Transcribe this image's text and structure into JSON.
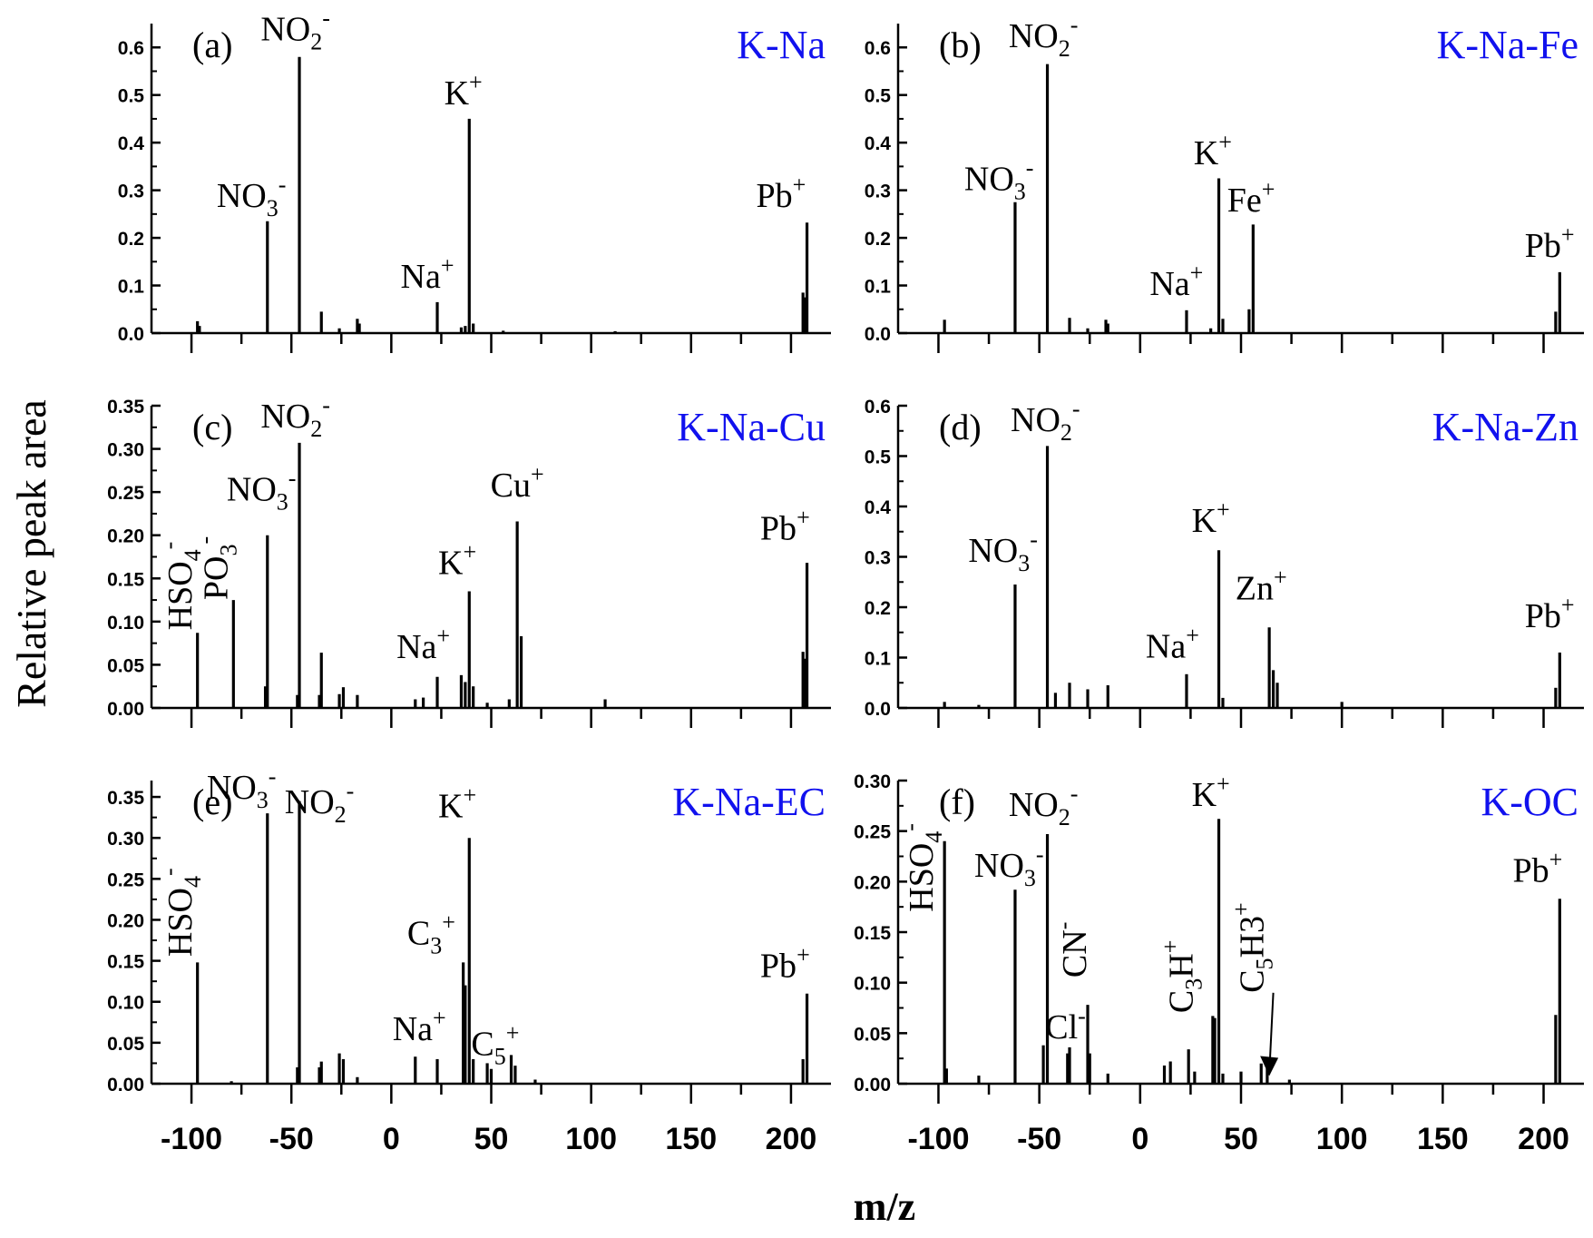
{
  "figure": {
    "ylabel": "Relative peak area",
    "xlabel": "m/z",
    "x_ticks": [
      "-100",
      "-50",
      "0",
      "50",
      "100",
      "150",
      "200"
    ],
    "text_color": "#000000",
    "title_color": "#1111ee"
  },
  "chart_data": [
    {
      "type": "bar",
      "panel": "(a)",
      "title": "K-Na",
      "xlim": [
        -120,
        220
      ],
      "ylim": [
        0,
        0.65
      ],
      "yticks": [
        0.0,
        0.1,
        0.2,
        0.3,
        0.4,
        0.5,
        0.6
      ],
      "ytick_labels": [
        "0.0",
        "0.1",
        "0.2",
        "0.3",
        "0.4",
        "0.5",
        "0.6"
      ],
      "peaks": [
        {
          "x": -97,
          "y": 0.025
        },
        {
          "x": -96,
          "y": 0.015
        },
        {
          "x": -62,
          "y": 0.235
        },
        {
          "x": -46,
          "y": 0.58
        },
        {
          "x": -35,
          "y": 0.045
        },
        {
          "x": -26,
          "y": 0.01
        },
        {
          "x": -17,
          "y": 0.03
        },
        {
          "x": -16,
          "y": 0.02
        },
        {
          "x": 23,
          "y": 0.065
        },
        {
          "x": 35,
          "y": 0.012
        },
        {
          "x": 37,
          "y": 0.015
        },
        {
          "x": 39,
          "y": 0.45
        },
        {
          "x": 41,
          "y": 0.02
        },
        {
          "x": 56,
          "y": 0.005
        },
        {
          "x": 112,
          "y": 0.004
        },
        {
          "x": 206,
          "y": 0.085
        },
        {
          "x": 207,
          "y": 0.075
        },
        {
          "x": 208,
          "y": 0.232
        }
      ],
      "annotations": [
        {
          "base": "NO",
          "sub": "3",
          "sup": "-"
        },
        {
          "base": "NO",
          "sub": "2",
          "sup": "-"
        },
        {
          "base": "K",
          "sub": "",
          "sup": "+"
        },
        {
          "base": "Na",
          "sub": "",
          "sup": "+"
        },
        {
          "base": "Pb",
          "sub": "",
          "sup": "+"
        }
      ]
    },
    {
      "type": "bar",
      "panel": "(b)",
      "title": "K-Na-Fe",
      "xlim": [
        -120,
        220
      ],
      "ylim": [
        0,
        0.65
      ],
      "yticks": [
        0.0,
        0.1,
        0.2,
        0.3,
        0.4,
        0.5,
        0.6
      ],
      "ytick_labels": [
        "0.0",
        "0.1",
        "0.2",
        "0.3",
        "0.4",
        "0.5",
        "0.6"
      ],
      "peaks": [
        {
          "x": -97,
          "y": 0.028
        },
        {
          "x": -62,
          "y": 0.275
        },
        {
          "x": -46,
          "y": 0.565
        },
        {
          "x": -35,
          "y": 0.032
        },
        {
          "x": -26,
          "y": 0.01
        },
        {
          "x": -17,
          "y": 0.028
        },
        {
          "x": -16,
          "y": 0.02
        },
        {
          "x": 23,
          "y": 0.048
        },
        {
          "x": 35,
          "y": 0.01
        },
        {
          "x": 39,
          "y": 0.325
        },
        {
          "x": 41,
          "y": 0.03
        },
        {
          "x": 54,
          "y": 0.05
        },
        {
          "x": 56,
          "y": 0.228
        },
        {
          "x": 206,
          "y": 0.045
        },
        {
          "x": 208,
          "y": 0.128
        }
      ],
      "annotations": [
        {
          "base": "NO",
          "sub": "3",
          "sup": "-"
        },
        {
          "base": "NO",
          "sub": "2",
          "sup": "-"
        },
        {
          "base": "K",
          "sub": "",
          "sup": "+"
        },
        {
          "base": "Fe",
          "sub": "",
          "sup": "+"
        },
        {
          "base": "Na",
          "sub": "",
          "sup": "+"
        },
        {
          "base": "Pb",
          "sub": "",
          "sup": "+"
        }
      ]
    },
    {
      "type": "bar",
      "panel": "(c)",
      "title": "K-Na-Cu",
      "xlim": [
        -120,
        220
      ],
      "ylim": [
        0,
        0.35
      ],
      "yticks": [
        0.0,
        0.05,
        0.1,
        0.15,
        0.2,
        0.25,
        0.3,
        0.35
      ],
      "ytick_labels": [
        "0.00",
        "0.05",
        "0.10",
        "0.15",
        "0.20",
        "0.25",
        "0.30",
        "0.35"
      ],
      "peaks": [
        {
          "x": -97,
          "y": 0.087
        },
        {
          "x": -79,
          "y": 0.125
        },
        {
          "x": -63,
          "y": 0.025
        },
        {
          "x": -62,
          "y": 0.2
        },
        {
          "x": -47,
          "y": 0.015
        },
        {
          "x": -46,
          "y": 0.307
        },
        {
          "x": -36,
          "y": 0.015
        },
        {
          "x": -35,
          "y": 0.064
        },
        {
          "x": -26,
          "y": 0.016
        },
        {
          "x": -24,
          "y": 0.024
        },
        {
          "x": -17,
          "y": 0.015
        },
        {
          "x": 12,
          "y": 0.01
        },
        {
          "x": 16,
          "y": 0.012
        },
        {
          "x": 23,
          "y": 0.036
        },
        {
          "x": 35,
          "y": 0.038
        },
        {
          "x": 37,
          "y": 0.03
        },
        {
          "x": 39,
          "y": 0.135
        },
        {
          "x": 41,
          "y": 0.025
        },
        {
          "x": 48,
          "y": 0.006
        },
        {
          "x": 59,
          "y": 0.01
        },
        {
          "x": 63,
          "y": 0.216
        },
        {
          "x": 65,
          "y": 0.083
        },
        {
          "x": 107,
          "y": 0.01
        },
        {
          "x": 206,
          "y": 0.065
        },
        {
          "x": 207,
          "y": 0.057
        },
        {
          "x": 208,
          "y": 0.168
        }
      ],
      "annotations": [
        {
          "base": "HSO",
          "sub": "4",
          "sup": "-"
        },
        {
          "base": "PO",
          "sub": "3",
          "sup": "-"
        },
        {
          "base": "NO",
          "sub": "3",
          "sup": "-"
        },
        {
          "base": "NO",
          "sub": "2",
          "sup": "-"
        },
        {
          "base": "Na",
          "sub": "",
          "sup": "+"
        },
        {
          "base": "K",
          "sub": "",
          "sup": "+"
        },
        {
          "base": "Cu",
          "sub": "",
          "sup": "+"
        },
        {
          "base": "Pb",
          "sub": "",
          "sup": "+"
        }
      ]
    },
    {
      "type": "bar",
      "panel": "(d)",
      "title": "K-Na-Zn",
      "xlim": [
        -120,
        220
      ],
      "ylim": [
        0,
        0.6
      ],
      "yticks": [
        0.0,
        0.1,
        0.2,
        0.3,
        0.4,
        0.5,
        0.6
      ],
      "ytick_labels": [
        "0.0",
        "0.1",
        "0.2",
        "0.3",
        "0.4",
        "0.5",
        "0.6"
      ],
      "peaks": [
        {
          "x": -97,
          "y": 0.012
        },
        {
          "x": -80,
          "y": 0.006
        },
        {
          "x": -62,
          "y": 0.245
        },
        {
          "x": -46,
          "y": 0.52
        },
        {
          "x": -42,
          "y": 0.03
        },
        {
          "x": -35,
          "y": 0.05
        },
        {
          "x": -26,
          "y": 0.037
        },
        {
          "x": -16,
          "y": 0.045
        },
        {
          "x": 23,
          "y": 0.067
        },
        {
          "x": 39,
          "y": 0.313
        },
        {
          "x": 41,
          "y": 0.02
        },
        {
          "x": 64,
          "y": 0.16
        },
        {
          "x": 66,
          "y": 0.075
        },
        {
          "x": 68,
          "y": 0.05
        },
        {
          "x": 100,
          "y": 0.012
        },
        {
          "x": 206,
          "y": 0.04
        },
        {
          "x": 208,
          "y": 0.11
        }
      ],
      "annotations": [
        {
          "base": "NO",
          "sub": "3",
          "sup": "-"
        },
        {
          "base": "NO",
          "sub": "2",
          "sup": "-"
        },
        {
          "base": "K",
          "sub": "",
          "sup": "+"
        },
        {
          "base": "Zn",
          "sub": "",
          "sup": "+"
        },
        {
          "base": "Na",
          "sub": "",
          "sup": "+"
        },
        {
          "base": "Pb",
          "sub": "",
          "sup": "+"
        }
      ]
    },
    {
      "type": "bar",
      "panel": "(e)",
      "title": "K-Na-EC",
      "xlim": [
        -120,
        220
      ],
      "ylim": [
        0,
        0.37
      ],
      "yticks": [
        0.0,
        0.05,
        0.1,
        0.15,
        0.2,
        0.25,
        0.3,
        0.35
      ],
      "ytick_labels": [
        "0.00",
        "0.05",
        "0.10",
        "0.15",
        "0.20",
        "0.25",
        "0.30",
        "0.35"
      ],
      "peaks": [
        {
          "x": -97,
          "y": 0.148
        },
        {
          "x": -80,
          "y": 0.003
        },
        {
          "x": -62,
          "y": 0.33
        },
        {
          "x": -47,
          "y": 0.02
        },
        {
          "x": -46,
          "y": 0.345
        },
        {
          "x": -36,
          "y": 0.02
        },
        {
          "x": -35,
          "y": 0.027
        },
        {
          "x": -26,
          "y": 0.037
        },
        {
          "x": -24,
          "y": 0.03
        },
        {
          "x": -17,
          "y": 0.008
        },
        {
          "x": 12,
          "y": 0.033
        },
        {
          "x": 23,
          "y": 0.03
        },
        {
          "x": 36,
          "y": 0.148
        },
        {
          "x": 37,
          "y": 0.12
        },
        {
          "x": 39,
          "y": 0.3
        },
        {
          "x": 41,
          "y": 0.03
        },
        {
          "x": 48,
          "y": 0.025
        },
        {
          "x": 50,
          "y": 0.018
        },
        {
          "x": 60,
          "y": 0.035
        },
        {
          "x": 62,
          "y": 0.022
        },
        {
          "x": 72,
          "y": 0.005
        },
        {
          "x": 206,
          "y": 0.03
        },
        {
          "x": 208,
          "y": 0.11
        }
      ],
      "annotations": [
        {
          "base": "HSO",
          "sub": "4",
          "sup": "-"
        },
        {
          "base": "NO",
          "sub": "3",
          "sup": "-"
        },
        {
          "base": "NO",
          "sub": "2",
          "sup": "-"
        },
        {
          "base": "K",
          "sub": "",
          "sup": "+"
        },
        {
          "base": "C",
          "sub": "3",
          "sup": "+"
        },
        {
          "base": "Na",
          "sub": "",
          "sup": "+"
        },
        {
          "base": "C",
          "sub": "5",
          "sup": "+"
        },
        {
          "base": "Pb",
          "sub": "",
          "sup": "+"
        }
      ]
    },
    {
      "type": "bar",
      "panel": "(f)",
      "title": "K-OC",
      "xlim": [
        -120,
        220
      ],
      "ylim": [
        0,
        0.3
      ],
      "yticks": [
        0.0,
        0.05,
        0.1,
        0.15,
        0.2,
        0.25,
        0.3
      ],
      "ytick_labels": [
        "0.00",
        "0.05",
        "0.10",
        "0.15",
        "0.20",
        "0.25",
        "0.30"
      ],
      "peaks": [
        {
          "x": -97,
          "y": 0.24
        },
        {
          "x": -96,
          "y": 0.015
        },
        {
          "x": -80,
          "y": 0.008
        },
        {
          "x": -62,
          "y": 0.192
        },
        {
          "x": -48,
          "y": 0.038
        },
        {
          "x": -46,
          "y": 0.247
        },
        {
          "x": -36,
          "y": 0.03
        },
        {
          "x": -35,
          "y": 0.036
        },
        {
          "x": -26,
          "y": 0.078
        },
        {
          "x": -25,
          "y": 0.03
        },
        {
          "x": -16,
          "y": 0.01
        },
        {
          "x": 12,
          "y": 0.018
        },
        {
          "x": 15,
          "y": 0.022
        },
        {
          "x": 24,
          "y": 0.034
        },
        {
          "x": 27,
          "y": 0.012
        },
        {
          "x": 36,
          "y": 0.067
        },
        {
          "x": 37,
          "y": 0.065
        },
        {
          "x": 39,
          "y": 0.262
        },
        {
          "x": 41,
          "y": 0.01
        },
        {
          "x": 50,
          "y": 0.012
        },
        {
          "x": 60,
          "y": 0.02
        },
        {
          "x": 63,
          "y": 0.02
        },
        {
          "x": 74,
          "y": 0.004
        },
        {
          "x": 206,
          "y": 0.068
        },
        {
          "x": 208,
          "y": 0.183
        }
      ],
      "annotations": [
        {
          "base": "HSO",
          "sub": "4",
          "sup": "-"
        },
        {
          "base": "NO",
          "sub": "3",
          "sup": "-"
        },
        {
          "base": "NO",
          "sub": "2",
          "sup": "-"
        },
        {
          "base": "CN",
          "sub": "",
          "sup": "-"
        },
        {
          "base": "Cl",
          "sub": "",
          "sup": "-"
        },
        {
          "base": "K",
          "sub": "",
          "sup": "+"
        },
        {
          "base": "C",
          "sub": "3",
          "sup": "+",
          "mid": "H"
        },
        {
          "base": "C",
          "sub": "5",
          "sup": "+",
          "mid": "H3"
        },
        {
          "base": "Pb",
          "sub": "",
          "sup": "+"
        }
      ]
    }
  ]
}
